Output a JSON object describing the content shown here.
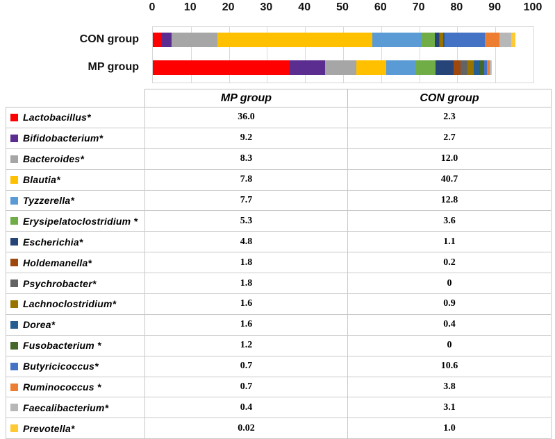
{
  "table": {
    "col_mp": "MP group",
    "col_con": "CON group"
  },
  "chart_data": {
    "type": "bar",
    "stacked": true,
    "orientation": "horizontal",
    "categories": [
      "CON group",
      "MP group"
    ],
    "xlim": [
      0,
      100
    ],
    "x_ticks": [
      0,
      10,
      20,
      30,
      40,
      50,
      60,
      70,
      80,
      90,
      100
    ],
    "grid": true,
    "legend_position": "table-left-column",
    "series": [
      {
        "name": "Lactobacillus*",
        "color": "#FF0000",
        "mp": 36.0,
        "con": 2.3,
        "mp_label": "36.0",
        "con_label": "2.3"
      },
      {
        "name": "Bifidobacterium*",
        "color": "#5B2D90",
        "mp": 9.2,
        "con": 2.7,
        "mp_label": "9.2",
        "con_label": "2.7"
      },
      {
        "name": "Bacteroides*",
        "color": "#A6A6A6",
        "mp": 8.3,
        "con": 12.0,
        "mp_label": "8.3",
        "con_label": "12.0"
      },
      {
        "name": "Blautia*",
        "color": "#FFC000",
        "mp": 7.8,
        "con": 40.7,
        "mp_label": "7.8",
        "con_label": "40.7"
      },
      {
        "name": "Tyzzerella*",
        "color": "#5B9BD5",
        "mp": 7.7,
        "con": 12.8,
        "mp_label": "7.7",
        "con_label": "12.8"
      },
      {
        "name": "Erysipelatoclostridium *",
        "color": "#70AD47",
        "mp": 5.3,
        "con": 3.6,
        "mp_label": "5.3",
        "con_label": "3.6"
      },
      {
        "name": "Escherichia*",
        "color": "#264478",
        "mp": 4.8,
        "con": 1.1,
        "mp_label": "4.8",
        "con_label": "1.1"
      },
      {
        "name": "Holdemanella*",
        "color": "#9E480E",
        "mp": 1.8,
        "con": 0.2,
        "mp_label": "1.8",
        "con_label": "0.2"
      },
      {
        "name": "Psychrobacter*",
        "color": "#636363",
        "mp": 1.8,
        "con": 0,
        "mp_label": "1.8",
        "con_label": "0"
      },
      {
        "name": "Lachnoclostridium*",
        "color": "#997300",
        "mp": 1.6,
        "con": 0.9,
        "mp_label": "1.6",
        "con_label": "0.9"
      },
      {
        "name": "Dorea*",
        "color": "#255E91",
        "mp": 1.6,
        "con": 0.4,
        "mp_label": "1.6",
        "con_label": "0.4"
      },
      {
        "name": "Fusobacterium *",
        "color": "#43682B",
        "mp": 1.2,
        "con": 0,
        "mp_label": "1.2",
        "con_label": "0"
      },
      {
        "name": "Butyricicoccus*",
        "color": "#4472C4",
        "mp": 0.7,
        "con": 10.6,
        "mp_label": "0.7",
        "con_label": "10.6"
      },
      {
        "name": "Ruminococcus *",
        "color": "#ED7D31",
        "mp": 0.7,
        "con": 3.8,
        "mp_label": "0.7",
        "con_label": "3.8"
      },
      {
        "name": "Faecalibacterium*",
        "color": "#B7B7B7",
        "mp": 0.4,
        "con": 3.1,
        "mp_label": "0.4",
        "con_label": "3.1"
      },
      {
        "name": "Prevotella*",
        "color": "#FFC933",
        "mp": 0.02,
        "con": 1.0,
        "mp_label": "0.02",
        "con_label": "1.0"
      }
    ]
  }
}
